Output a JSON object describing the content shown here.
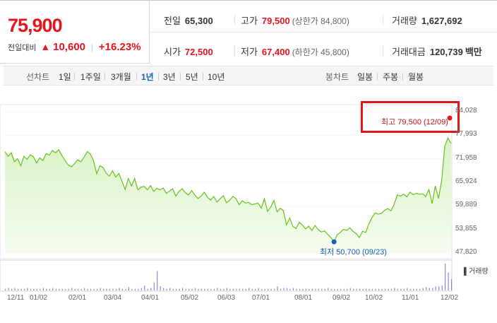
{
  "price": {
    "current": "75,900",
    "change_label": "전일대비",
    "change_arrow": "▲",
    "change_amount": "10,600",
    "change_pct": "+16.23%"
  },
  "stats": {
    "prev_close": {
      "label": "전일",
      "value": "65,300"
    },
    "high": {
      "label": "고가",
      "value": "79,500",
      "sub": "(상한가 84,800)"
    },
    "volume": {
      "label": "거래량",
      "value": "1,627,692"
    },
    "open": {
      "label": "시가",
      "value": "72,500"
    },
    "low": {
      "label": "저가",
      "value": "67,400",
      "sub": "(하한가 45,800)"
    },
    "amount": {
      "label": "거래대금",
      "value": "120,739",
      "unit": "백만"
    }
  },
  "tabs": {
    "line_chart_label": "선차트",
    "line_periods": [
      "1일",
      "1주일",
      "3개월",
      "1년",
      "3년",
      "5년",
      "10년"
    ],
    "active_period": "1년",
    "candle_chart_label": "봉차트",
    "candle_periods": [
      "일봉",
      "주봉",
      "월봉"
    ]
  },
  "colors": {
    "up_red": "#e5151c",
    "down_blue": "#1a5fb4",
    "line_green": "#66c21a",
    "area_fill_top": "#d8f2c4",
    "area_fill_bottom": "#f6fcf1",
    "volume_bar": "#8a8ad0"
  },
  "chart_data": {
    "type": "area",
    "max_annotation": "최고 79,500 (12/09)",
    "min_annotation": "최저 50,700 (09/23)",
    "volume_label": "거래량",
    "y_ticks": [
      "84,028",
      "77,993",
      "71,958",
      "65,924",
      "59,889",
      "53,855",
      "47,820"
    ],
    "ylim": [
      47820,
      84028
    ],
    "x_ticks": [
      "12/11",
      "01/02",
      "02/01",
      "03/04",
      "04/01",
      "05/02",
      "06/03",
      "07/01",
      "08/01",
      "09/02",
      "10/02",
      "11/01",
      "12/02"
    ],
    "series": [
      {
        "values": [
          73800,
          72600,
          73500,
          71200,
          72000,
          70200,
          72600,
          71800,
          73000,
          72500,
          70900,
          72200,
          71500,
          73300,
          72900,
          74100,
          73500,
          74300,
          72800,
          71500,
          70400,
          69900,
          70700,
          71700,
          71200,
          72400,
          73800,
          73200,
          71400,
          68100,
          70200,
          69700,
          68300,
          67500,
          68900,
          67300,
          68200,
          66200,
          64100,
          66900,
          65000,
          66900,
          64000,
          64700,
          64900,
          64000,
          65100,
          63600,
          64400,
          64000,
          64500,
          63100,
          63700,
          64300,
          62400,
          63600,
          64300,
          63300,
          62700,
          63800,
          62700,
          61800,
          62400,
          63400,
          62100,
          61400,
          62300,
          60900,
          61700,
          62500,
          60700,
          61300,
          62300,
          61800,
          60200,
          61200,
          60600,
          60800,
          60200,
          60400,
          60600,
          59300,
          61700,
          58500,
          59600,
          61300,
          58400,
          59300,
          58700,
          55000,
          56800,
          54600,
          54100,
          55700,
          55000,
          54000,
          54700,
          53600,
          54900,
          53800,
          53200,
          53500,
          52600,
          51800,
          50700,
          52500,
          53100,
          53900,
          53600,
          54300,
          53400,
          52800,
          51800,
          53400,
          53100,
          55300,
          56900,
          58100,
          57800,
          58000,
          58800,
          59200,
          58600,
          60300,
          62700,
          62400,
          62900,
          62200,
          63400,
          62800,
          63100,
          62900,
          63000,
          62300,
          64100,
          60500,
          65000,
          61800,
          66300,
          75200,
          77300,
          75900
        ]
      }
    ],
    "volume": [
      2,
      3,
      2,
      3,
      2,
      2,
      2,
      3,
      2,
      2,
      2,
      2,
      3,
      2,
      2,
      3,
      2,
      2,
      2,
      2,
      2,
      3,
      2,
      2,
      2,
      3,
      2,
      2,
      2,
      2,
      3,
      2,
      2,
      2,
      2,
      2,
      3,
      2,
      2,
      4,
      2,
      2,
      2,
      3,
      6,
      2,
      3,
      10,
      24,
      5,
      3,
      2,
      3,
      2,
      2,
      2,
      3,
      2,
      2,
      2,
      3,
      2,
      2,
      2,
      2,
      2,
      2,
      3,
      2,
      2,
      3,
      2,
      2,
      2,
      2,
      2,
      2,
      3,
      2,
      2,
      3,
      2,
      2,
      2,
      2,
      2,
      5,
      2,
      3,
      3,
      2,
      3,
      2,
      2,
      2,
      2,
      2,
      2,
      2,
      2,
      2,
      2,
      3,
      2,
      2,
      2,
      2,
      2,
      2,
      3,
      2,
      2,
      2,
      2,
      2,
      2,
      2,
      2,
      2,
      2,
      2,
      2,
      2,
      3,
      2,
      2,
      2,
      3,
      2,
      2,
      2,
      2,
      3,
      4,
      3,
      3,
      5,
      5,
      6,
      33,
      22,
      14
    ]
  }
}
